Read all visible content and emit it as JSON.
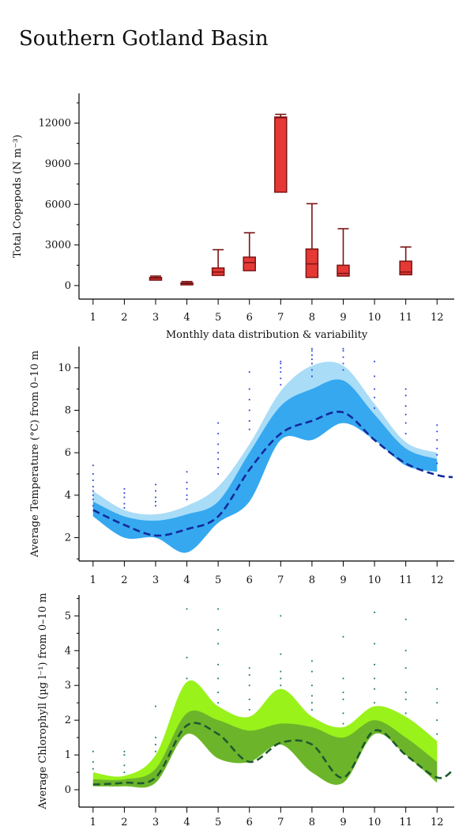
{
  "page_title": "Southern Gotland Basin",
  "chart_data": [
    {
      "type": "box",
      "ylabel": "Total Copepods (N m⁻³)",
      "xlabel": "Monthly data distribution & variability",
      "ylim": [
        -1000,
        14200
      ],
      "xlim": [
        0.55,
        12.55
      ],
      "categories": [
        1,
        2,
        3,
        4,
        5,
        6,
        7,
        8,
        9,
        10,
        11,
        12
      ],
      "y_ticks": [
        0,
        3000,
        6000,
        9000,
        12000
      ],
      "colors": {
        "fill": "#e53935",
        "stroke": "#7a1414"
      },
      "boxes": [
        {
          "month": 3,
          "lower": 400,
          "q1": 400,
          "median": 550,
          "q3": 600,
          "upper": 700
        },
        {
          "month": 4,
          "lower": 100,
          "q1": 100,
          "median": 150,
          "q3": 200,
          "upper": 300
        },
        {
          "month": 5,
          "lower": 750,
          "q1": 750,
          "median": 1000,
          "q3": 1300,
          "upper": 2650
        },
        {
          "month": 6,
          "lower": 1100,
          "q1": 1100,
          "median": 1700,
          "q3": 2100,
          "upper": 3900
        },
        {
          "month": 7,
          "lower": 6900,
          "q1": 6900,
          "median": 12400,
          "q3": 12450,
          "upper": 12650
        },
        {
          "month": 8,
          "lower": 600,
          "q1": 600,
          "median": 1600,
          "q3": 2700,
          "upper": 6050
        },
        {
          "month": 9,
          "lower": 700,
          "q1": 700,
          "median": 900,
          "q3": 1500,
          "upper": 4200
        },
        {
          "month": 11,
          "lower": 800,
          "q1": 800,
          "median": 1000,
          "q3": 1800,
          "upper": 2850
        }
      ]
    },
    {
      "type": "area",
      "ylabel": "Average Temperature (°C) from 0–10 m",
      "xlim": [
        0.55,
        12.55
      ],
      "ylim": [
        0.9,
        11.0
      ],
      "categories": [
        1,
        2,
        3,
        4,
        5,
        6,
        7,
        8,
        9,
        10,
        11,
        12
      ],
      "y_ticks": [
        2,
        4,
        6,
        8,
        10
      ],
      "colors": {
        "outer": "#a9dcf7",
        "inner": "#35a8f0",
        "line": "#142a9a",
        "dots": "#2a3fd6"
      },
      "x": [
        1,
        2,
        3,
        4,
        5,
        6,
        7,
        8,
        9,
        10,
        11,
        12,
        12.5
      ],
      "outer_upper": [
        4.2,
        3.3,
        3.1,
        3.5,
        4.4,
        6.4,
        8.9,
        10.1,
        10.1,
        8.3,
        6.5,
        6.0,
        null
      ],
      "outer_lower": [
        3.0,
        2.0,
        2.0,
        1.4,
        2.7,
        3.7,
        6.6,
        6.6,
        7.4,
        6.6,
        5.4,
        5.1,
        null
      ],
      "inner_upper": [
        3.7,
        3.0,
        2.8,
        3.1,
        3.7,
        6.0,
        8.2,
        9.0,
        9.4,
        7.8,
        6.2,
        5.7,
        null
      ],
      "inner_lower": [
        3.0,
        2.0,
        2.0,
        1.3,
        2.7,
        3.7,
        6.6,
        6.6,
        7.4,
        6.6,
        5.4,
        5.1,
        null
      ],
      "median": [
        3.3,
        2.6,
        2.1,
        2.4,
        3.0,
        5.2,
        6.9,
        7.5,
        7.9,
        6.6,
        5.5,
        4.95,
        4.85
      ],
      "scatter": [
        {
          "x": 1,
          "ys": [
            3.5,
            3.8,
            4.0,
            4.2,
            4.4,
            4.7,
            5.0,
            5.4
          ]
        },
        {
          "x": 2,
          "ys": [
            3.4,
            3.6,
            3.9,
            4.1,
            4.3
          ]
        },
        {
          "x": 3,
          "ys": [
            3.5,
            3.7,
            3.9,
            4.2,
            4.5
          ]
        },
        {
          "x": 4,
          "ys": [
            3.8,
            4.0,
            4.3,
            4.6,
            5.1
          ]
        },
        {
          "x": 5,
          "ys": [
            5.0,
            5.3,
            5.7,
            6.0,
            6.4,
            6.9,
            7.4
          ]
        },
        {
          "x": 6,
          "ys": [
            7.1,
            7.5,
            8.0,
            8.5,
            9.0,
            9.8
          ]
        },
        {
          "x": 7,
          "ys": [
            9.2,
            9.5,
            9.8,
            10.0,
            10.2,
            10.3
          ]
        },
        {
          "x": 8,
          "ys": [
            9.6,
            9.9,
            10.2,
            10.4,
            10.6,
            10.8,
            10.9
          ]
        },
        {
          "x": 9,
          "ys": [
            9.9,
            10.2,
            10.5,
            10.8,
            10.9
          ]
        },
        {
          "x": 10,
          "ys": [
            8.1,
            8.6,
            9.0,
            9.6,
            10.3
          ]
        },
        {
          "x": 11,
          "ys": [
            6.9,
            7.4,
            7.8,
            8.2,
            8.7,
            9.0
          ]
        },
        {
          "x": 12,
          "ys": [
            5.5,
            5.9,
            6.2,
            6.6,
            7.0,
            7.3
          ]
        }
      ]
    },
    {
      "type": "area",
      "ylabel": "Average Chlorophyll (µg l⁻¹) from 0–10 m",
      "xlim": [
        0.55,
        12.55
      ],
      "ylim": [
        -0.5,
        5.6
      ],
      "categories": [
        1,
        2,
        3,
        4,
        5,
        6,
        7,
        8,
        9,
        10,
        11,
        12
      ],
      "y_ticks": [
        0,
        1,
        2,
        3,
        4,
        5
      ],
      "colors": {
        "outer": "#99f21a",
        "inner": "#6cb52a",
        "line": "#1f5a2e",
        "dots": "#0f7a6a"
      },
      "x": [
        1,
        2,
        3,
        4,
        5,
        6,
        7,
        8,
        9,
        10,
        11,
        12,
        12.5
      ],
      "outer_upper": [
        0.5,
        0.4,
        1.0,
        3.1,
        2.4,
        2.1,
        2.9,
        2.1,
        1.8,
        2.4,
        2.1,
        1.4,
        null
      ],
      "outer_lower": [
        0.1,
        0.1,
        0.2,
        1.6,
        0.9,
        0.8,
        1.3,
        0.5,
        0.2,
        1.6,
        1.0,
        0.2,
        null
      ],
      "inner_upper": [
        0.3,
        0.3,
        0.6,
        2.2,
        2.0,
        1.7,
        1.9,
        1.8,
        1.5,
        2.0,
        1.5,
        0.8,
        null
      ],
      "inner_lower": [
        0.1,
        0.1,
        0.2,
        1.6,
        0.9,
        0.8,
        1.3,
        0.5,
        0.2,
        1.6,
        1.0,
        0.2,
        null
      ],
      "median": [
        0.15,
        0.2,
        0.35,
        1.85,
        1.6,
        0.8,
        1.35,
        1.3,
        0.35,
        1.7,
        1.0,
        0.35,
        0.55
      ],
      "scatter": [
        {
          "x": 1,
          "ys": [
            0.6,
            0.8,
            1.1
          ]
        },
        {
          "x": 2,
          "ys": [
            0.5,
            0.7,
            1.0,
            1.1
          ]
        },
        {
          "x": 3,
          "ys": [
            1.1,
            1.3,
            1.5,
            2.4
          ]
        },
        {
          "x": 4,
          "ys": [
            3.2,
            3.8,
            5.2
          ]
        },
        {
          "x": 5,
          "ys": [
            2.5,
            2.8,
            3.2,
            3.6,
            4.2,
            4.6,
            5.2
          ]
        },
        {
          "x": 6,
          "ys": [
            2.3,
            2.6,
            3.0,
            3.3,
            3.5
          ]
        },
        {
          "x": 7,
          "ys": [
            3.0,
            3.2,
            3.4,
            3.9,
            5.0
          ]
        },
        {
          "x": 8,
          "ys": [
            2.3,
            2.5,
            2.7,
            3.0,
            3.4,
            3.7
          ]
        },
        {
          "x": 9,
          "ys": [
            1.9,
            2.2,
            2.6,
            2.8,
            3.2,
            4.4
          ]
        },
        {
          "x": 10,
          "ys": [
            2.5,
            2.9,
            3.2,
            3.6,
            4.2,
            5.1
          ]
        },
        {
          "x": 11,
          "ys": [
            2.2,
            2.6,
            2.8,
            3.5,
            4.0,
            4.9
          ]
        },
        {
          "x": 12,
          "ys": [
            1.6,
            2.0,
            2.5,
            2.9
          ]
        }
      ]
    }
  ]
}
